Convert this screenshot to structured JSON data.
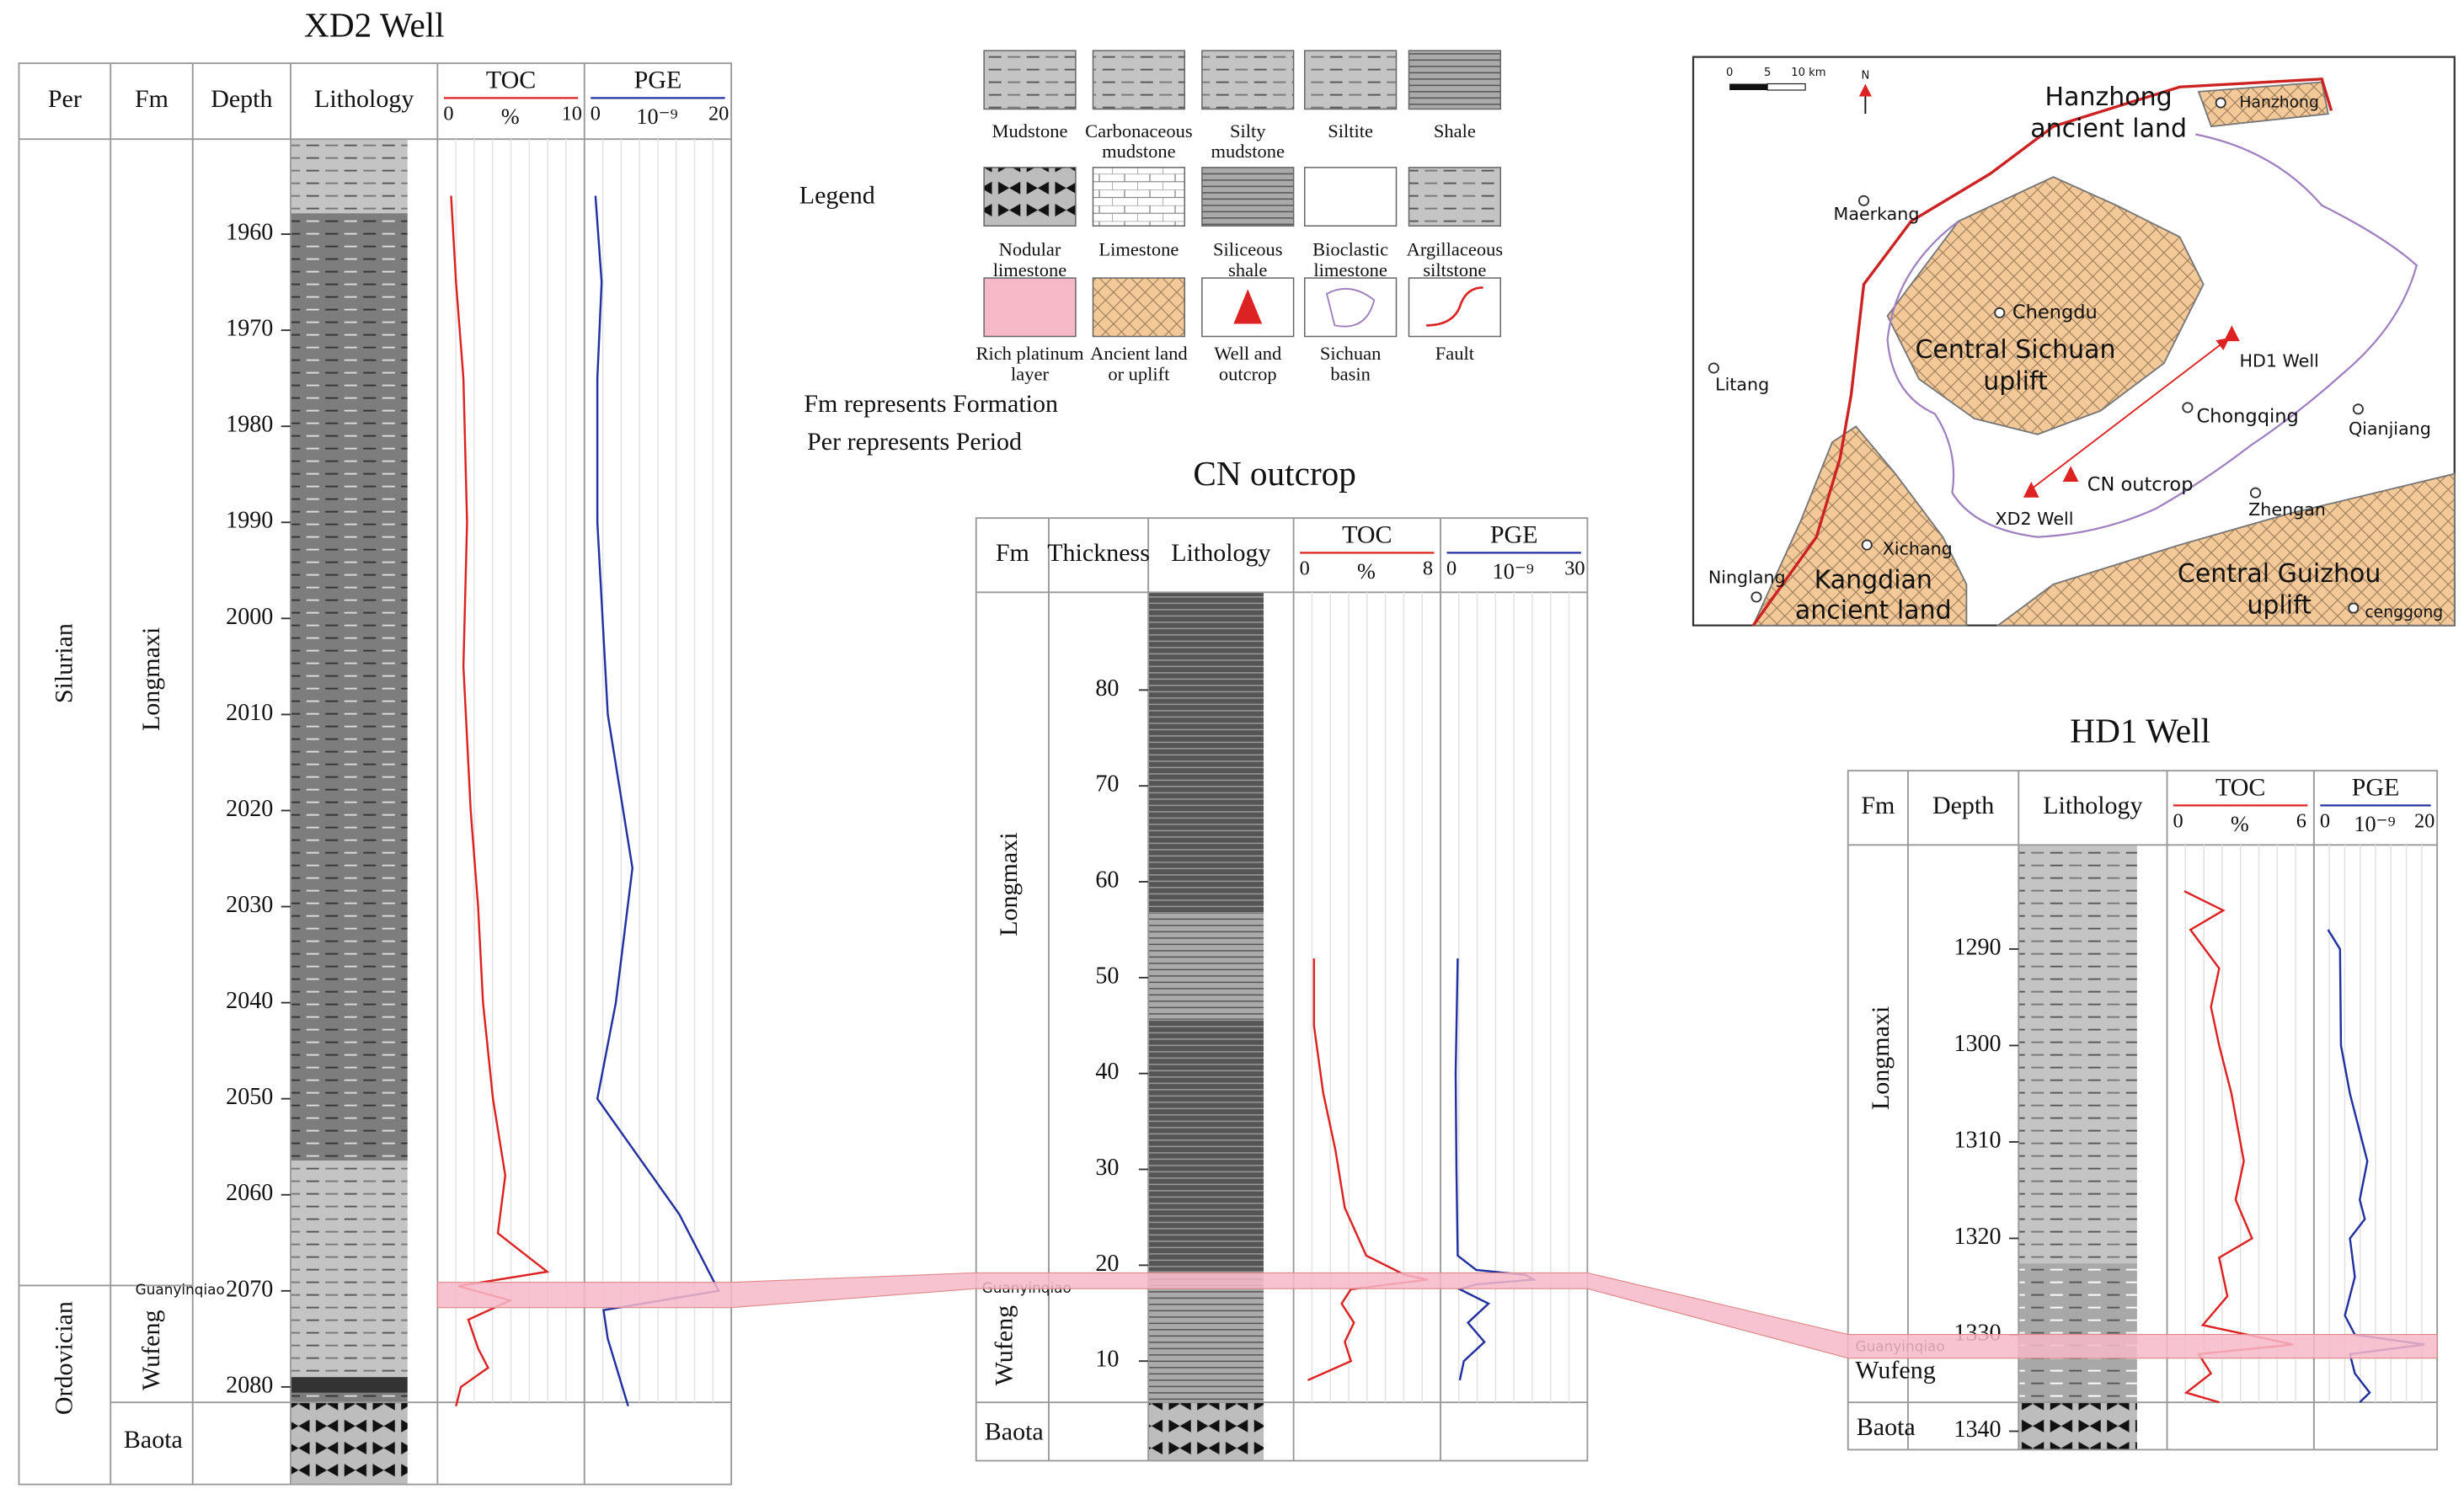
{
  "xd2": {
    "title": "XD2 Well",
    "headers": [
      "Per",
      "Fm",
      "Depth",
      "Lithology",
      "TOC",
      "PGE"
    ],
    "toc_scale": [
      0,
      10
    ],
    "toc_unit": "%",
    "pge_scale": [
      0,
      20
    ],
    "pge_unit": "10⁻⁹",
    "depth_lim": [
      1950.1,
      2081.6
    ],
    "depth_ticks": [
      1960,
      1970,
      1980,
      1990,
      2000,
      2010,
      2020,
      2030,
      2040,
      2050,
      2060,
      2070,
      2080
    ],
    "periods": [
      "Silurian",
      "Ordovician"
    ],
    "formations": [
      "Longmaxi",
      "Guanyinqiao",
      "Wufeng",
      "Baota"
    ],
    "toc": {
      "depth": [
        1956,
        1965,
        1975,
        1990,
        2005,
        2020,
        2030,
        2040,
        2050,
        2058,
        2064,
        2068,
        2069.5,
        2071,
        2073,
        2076,
        2078,
        2080,
        2082
      ],
      "values": [
        0.2,
        0.6,
        1.2,
        1.5,
        1.2,
        1.8,
        2.4,
        2.8,
        3.6,
        4.6,
        4.0,
        8.0,
        0.8,
        5.0,
        1.6,
        2.4,
        3.2,
        1.0,
        0.6
      ]
    },
    "pge": {
      "depth": [
        1956,
        1965,
        1975,
        1990,
        2010,
        2026,
        2040,
        2050,
        2062,
        2070,
        2072,
        2075,
        2082
      ],
      "values": [
        0,
        1,
        0.3,
        0.3,
        2,
        6,
        3.3,
        0.3,
        13.6,
        20,
        1.3,
        2,
        5.3
      ]
    }
  },
  "cn": {
    "title": "CN outcrop",
    "headers": [
      "Fm",
      "Thickness",
      "Lithology",
      "TOC",
      "PGE"
    ],
    "toc_scale": [
      0,
      8
    ],
    "toc_unit": "%",
    "pge_scale": [
      0,
      30
    ],
    "pge_unit": "10⁻⁹",
    "depth_lim": [
      90.2,
      5.7
    ],
    "depth_ticks": [
      10,
      20,
      30,
      40,
      50,
      60,
      70,
      80
    ],
    "formations": [
      "Longmaxi",
      "Guanyinqiao",
      "Wufeng",
      "Baota"
    ],
    "toc": {
      "depth": [
        52,
        45,
        38,
        32,
        26,
        21,
        19,
        18.5,
        17.5,
        16,
        14,
        12,
        10,
        8
      ],
      "values": [
        0.6,
        0.6,
        1.2,
        2.0,
        2.6,
        4.0,
        6.5,
        8.0,
        3.0,
        2.4,
        3.2,
        2.6,
        3.0,
        0.2
      ]
    },
    "pge": {
      "depth": [
        52,
        40,
        30,
        21,
        19.5,
        19,
        18.5,
        18,
        17.5,
        16,
        14,
        12,
        10,
        8
      ],
      "values": [
        1.5,
        1.0,
        1.2,
        1.5,
        6,
        18,
        20,
        6,
        2,
        9,
        4,
        8,
        3,
        2
      ]
    }
  },
  "hd1": {
    "title": "HD1 Well",
    "headers": [
      "Fm",
      "Depth",
      "Lithology",
      "TOC",
      "PGE"
    ],
    "toc_scale": [
      0,
      6
    ],
    "toc_unit": "%",
    "pge_scale": [
      0,
      20
    ],
    "pge_unit": "10⁻⁹",
    "depth_lim": [
      1279.2,
      1337.0
    ],
    "depth_ticks": [
      1290,
      1300,
      1310,
      1320,
      1330,
      1340
    ],
    "formations": [
      "Longmaxi",
      "Guanyinqiao",
      "Wufeng",
      "Baota"
    ],
    "toc": {
      "depth": [
        1284,
        1286,
        1288,
        1292,
        1296,
        1300,
        1305,
        1312,
        1316,
        1320,
        1322,
        1326,
        1329,
        1331,
        1332,
        1334,
        1336,
        1337
      ],
      "values": [
        0.3,
        2.2,
        0.6,
        2.0,
        1.6,
        2.0,
        2.6,
        3.2,
        2.8,
        3.6,
        2.0,
        2.4,
        1.2,
        5.6,
        1.0,
        1.6,
        0.4,
        2.0
      ]
    },
    "pge": {
      "depth": [
        1288,
        1290,
        1300,
        1305,
        1312,
        1316,
        1318,
        1320,
        1324,
        1328,
        1330,
        1331,
        1332,
        1334,
        1336,
        1337
      ],
      "values": [
        0.6,
        3.0,
        3.2,
        5.0,
        8.5,
        7.0,
        8.0,
        5.0,
        6.0,
        4.0,
        6.0,
        20,
        5,
        6,
        9,
        7
      ]
    }
  },
  "legend": {
    "title": "Legend",
    "items": [
      [
        "Mudstone"
      ],
      [
        "Carbonaceous",
        "mudstone"
      ],
      [
        "Silty",
        "mudstone"
      ],
      [
        "Siltite"
      ],
      [
        "Shale"
      ],
      [
        "Nodular",
        "limestone"
      ],
      [
        "Limestone"
      ],
      [
        "Siliceous",
        "shale"
      ],
      [
        "Bioclastic",
        "limestone"
      ],
      [
        "Argillaceous",
        "siltstone"
      ],
      [
        "Rich platinum",
        "layer"
      ],
      [
        "Ancient land",
        "or uplift"
      ],
      [
        "Well and",
        "outcrop"
      ],
      [
        "Sichuan",
        "basin"
      ],
      [
        "Fault"
      ]
    ],
    "notes": [
      "Fm represents Formation",
      "Per represents Period"
    ]
  },
  "map": {
    "labels": [
      "Hanzhong",
      "ancient land",
      "Hanzhong",
      "Maerkang",
      "Chengdu",
      "Central Sichuan",
      "uplift",
      "HD1 Well",
      "Litang",
      "Chongqing",
      "Qianjiang",
      "CN outcrop",
      "XD2 Well",
      "Zhengan",
      "Xichang",
      "Ninglang",
      "Kangdian",
      "ancient land",
      "Central Guizhou",
      "uplift",
      "cenggong"
    ],
    "scale": [
      "0",
      "5",
      "10 km"
    ],
    "north": "N"
  }
}
